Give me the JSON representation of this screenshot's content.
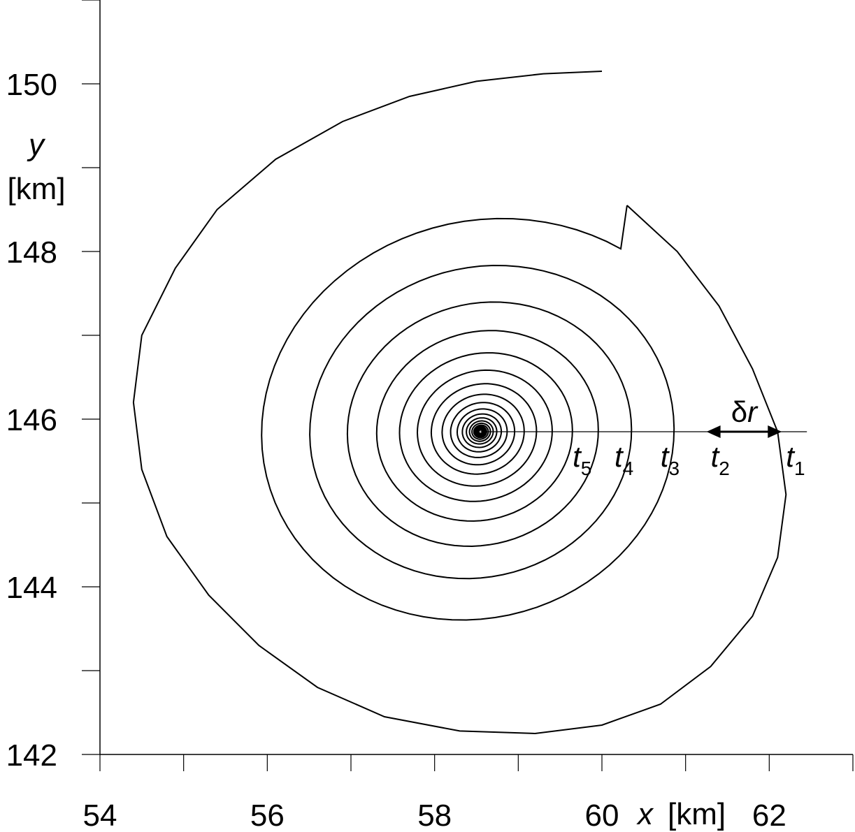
{
  "chart_data": {
    "type": "line",
    "title": "",
    "xlabel": "x [km]",
    "ylabel_var": "y",
    "ylabel_unit": "[km]",
    "xlim": [
      54,
      63
    ],
    "ylim": [
      142,
      151
    ],
    "x_ticks_major": [
      54,
      56,
      58,
      60,
      62
    ],
    "y_ticks_major": [
      142,
      144,
      146,
      148,
      150
    ],
    "x_tick_labels": [
      "54",
      "56",
      "58",
      "60",
      "62"
    ],
    "y_tick_labels": [
      "142",
      "144",
      "146",
      "148",
      "150"
    ],
    "spiral_center": [
      58.55,
      145.85
    ],
    "reference_line": {
      "x": [
        58.55,
        62.45
      ],
      "y": 145.85
    },
    "series": [
      {
        "values_x": [
          60.0,
          59.3,
          58.5,
          57.7,
          56.9,
          56.1,
          55.4,
          54.9,
          54.5,
          54.4,
          54.5,
          54.8,
          55.3,
          55.9,
          56.6,
          57.4,
          58.3,
          59.2,
          60.0,
          60.7,
          61.3,
          61.8,
          62.1,
          62.2,
          62.1,
          61.8,
          61.4,
          60.9,
          60.3
        ],
        "values_y": [
          150.15,
          150.12,
          150.03,
          149.85,
          149.55,
          149.1,
          148.5,
          147.8,
          147.0,
          146.2,
          145.4,
          144.6,
          143.9,
          143.3,
          142.8,
          142.45,
          142.28,
          142.25,
          142.35,
          142.6,
          143.05,
          143.65,
          144.35,
          145.1,
          145.85,
          146.6,
          147.35,
          148.0,
          148.55
        ]
      }
    ],
    "spiral_crossings": [
      {
        "label": "t",
        "sub": "1",
        "x": 62.15
      },
      {
        "label": "t",
        "sub": "2",
        "x": 61.25
      },
      {
        "label": "t",
        "sub": "3",
        "x": 60.65
      },
      {
        "label": "t",
        "sub": "4",
        "x": 60.1
      },
      {
        "label": "t",
        "sub": "5",
        "x": 59.6
      }
    ],
    "annotations": [
      {
        "text": "δr",
        "from_x": 61.25,
        "to_x": 62.15,
        "y": 145.85
      }
    ]
  }
}
